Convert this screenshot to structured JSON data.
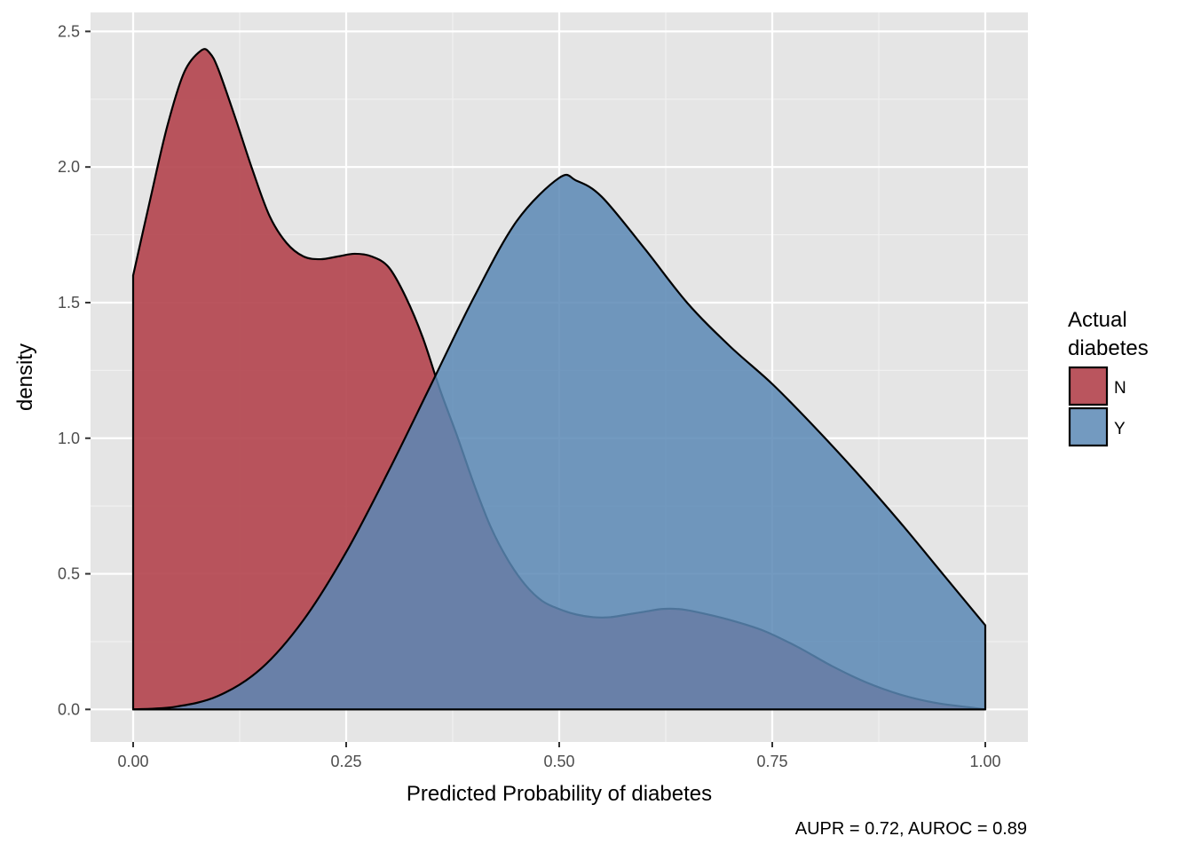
{
  "chart_data": {
    "type": "area",
    "subtype": "density",
    "xlabel": "Predicted Probability of diabetes",
    "ylabel": "density",
    "caption": "AUPR = 0.72, AUROC = 0.89",
    "xlim": [
      -0.05,
      1.05
    ],
    "ylim": [
      -0.12,
      2.57
    ],
    "x_ticks": [
      0,
      0.25,
      0.5,
      0.75,
      1.0
    ],
    "x_tick_labels": [
      "0.00",
      "0.25",
      "0.50",
      "0.75",
      "1.00"
    ],
    "y_ticks": [
      0,
      0.5,
      1.0,
      1.5,
      2.0,
      2.5
    ],
    "y_tick_labels": [
      "0.0",
      "0.5",
      "1.0",
      "1.5",
      "2.0",
      "2.5"
    ],
    "grid": true,
    "legend": {
      "title_lines": [
        "Actual",
        "diabetes"
      ],
      "position": "right",
      "entries": [
        {
          "key": "N",
          "color": "#b2434c"
        },
        {
          "key": "Y",
          "color": "#5b88b5"
        }
      ]
    },
    "series": [
      {
        "name": "N",
        "color": "#b2434c",
        "opacity": 0.9,
        "x": [
          0.0,
          0.02,
          0.04,
          0.06,
          0.08,
          0.09,
          0.1,
          0.12,
          0.14,
          0.16,
          0.18,
          0.2,
          0.22,
          0.24,
          0.26,
          0.28,
          0.3,
          0.32,
          0.34,
          0.36,
          0.38,
          0.4,
          0.42,
          0.44,
          0.46,
          0.48,
          0.5,
          0.52,
          0.54,
          0.56,
          0.58,
          0.6,
          0.62,
          0.64,
          0.66,
          0.7,
          0.74,
          0.78,
          0.82,
          0.86,
          0.9,
          0.94,
          0.98,
          1.0
        ],
        "y": [
          1.6,
          1.88,
          2.15,
          2.35,
          2.43,
          2.42,
          2.36,
          2.18,
          1.99,
          1.82,
          1.72,
          1.67,
          1.66,
          1.67,
          1.68,
          1.67,
          1.63,
          1.52,
          1.37,
          1.18,
          1.01,
          0.83,
          0.67,
          0.55,
          0.46,
          0.4,
          0.37,
          0.35,
          0.34,
          0.34,
          0.35,
          0.36,
          0.37,
          0.37,
          0.36,
          0.33,
          0.29,
          0.23,
          0.16,
          0.1,
          0.055,
          0.025,
          0.008,
          0.0
        ]
      },
      {
        "name": "Y",
        "color": "#5b88b5",
        "opacity": 0.85,
        "x": [
          0.0,
          0.05,
          0.1,
          0.15,
          0.2,
          0.25,
          0.3,
          0.35,
          0.4,
          0.45,
          0.5,
          0.52,
          0.55,
          0.6,
          0.65,
          0.7,
          0.75,
          0.8,
          0.85,
          0.9,
          0.95,
          1.0
        ],
        "y": [
          0.0,
          0.01,
          0.05,
          0.15,
          0.33,
          0.58,
          0.88,
          1.2,
          1.52,
          1.8,
          1.96,
          1.95,
          1.89,
          1.7,
          1.5,
          1.34,
          1.2,
          1.04,
          0.87,
          0.69,
          0.5,
          0.31
        ]
      }
    ]
  }
}
